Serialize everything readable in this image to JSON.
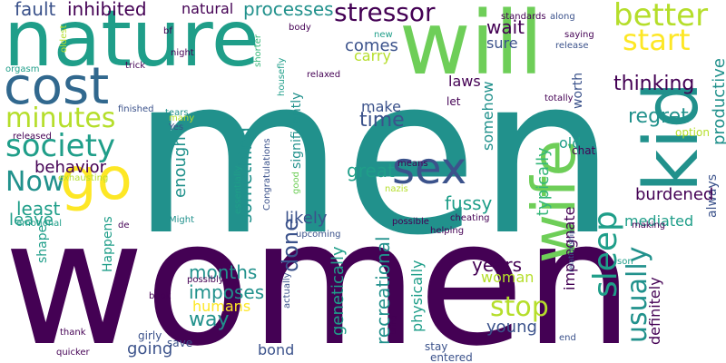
{
  "palette": {
    "dark_purple": "#440154",
    "indigo": "#3b528b",
    "blue_teal": "#31688e",
    "teal": "#21918c",
    "green_teal": "#1f9e89",
    "green": "#35b779",
    "light_green": "#6ece58",
    "lime": "#b5de2b",
    "yellow": "#fde725"
  },
  "words": [
    "men",
    "women",
    "nature",
    "will",
    "kid",
    "cost",
    "wife",
    "sex",
    "go",
    "sleep",
    "usually",
    "minutes",
    "society",
    "Now",
    "better",
    "start",
    "stop",
    "stressor",
    "fault",
    "inhibited",
    "natural",
    "processes",
    "thinking",
    "regret",
    "productive",
    "always",
    "behavior",
    "least",
    "leave",
    "something",
    "enough",
    "months",
    "imposes",
    "humans",
    "way",
    "done",
    "likely",
    "significantly",
    "make",
    "time",
    "comes",
    "carry",
    "sure",
    "wait",
    "laws",
    "somehow",
    "great",
    "fussy",
    "typically",
    "recreational",
    "physically",
    "genetically",
    "impregnate",
    "definitely",
    "years",
    "woman",
    "young",
    "bond",
    "going",
    "Happens",
    "shape",
    "mediated",
    "burdened",
    "old",
    "worth",
    "option",
    "totally",
    "let",
    "chat",
    "making",
    "son",
    "end",
    "relationship",
    "stay",
    "entered",
    "thing",
    "actually",
    "possibly",
    "save",
    "girly",
    "quicker",
    "thank",
    "book",
    "Might",
    "de",
    "emotional",
    "exhausting",
    "released",
    "orgasm",
    "oldest",
    "bf",
    "night",
    "body",
    "shorter",
    "housefly",
    "relaxed",
    "new",
    "standards",
    "saying",
    "along",
    "release",
    "trick",
    "finished",
    "tears",
    "many",
    "Yes",
    "Congratulations",
    "essentially",
    "good",
    "upcoming",
    "means",
    "nazis",
    "possible",
    "cheating",
    "helping"
  ]
}
